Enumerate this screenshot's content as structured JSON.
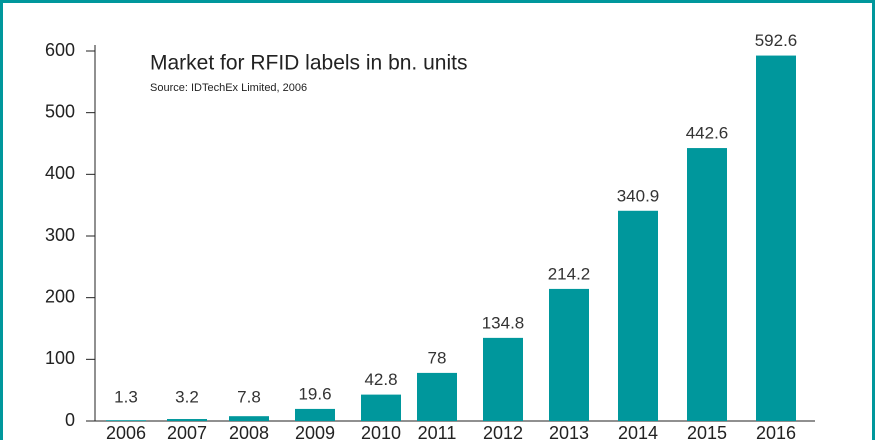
{
  "chart_data": {
    "type": "bar",
    "title": "Market for RFID labels in bn. units",
    "subtitle": "Source: IDTechEx Limited, 2006",
    "categories": [
      "2006",
      "2007",
      "2008",
      "2009",
      "2010",
      "2011",
      "2012",
      "2013",
      "2014",
      "2015",
      "2016"
    ],
    "values": [
      1.3,
      3.2,
      7.8,
      19.6,
      42.8,
      78,
      134.8,
      214.2,
      340.9,
      442.6,
      592.6
    ],
    "color": "#00979c",
    "ylim": [
      0,
      600
    ],
    "yticks": [
      0,
      100,
      200,
      300,
      400,
      500,
      600
    ]
  }
}
